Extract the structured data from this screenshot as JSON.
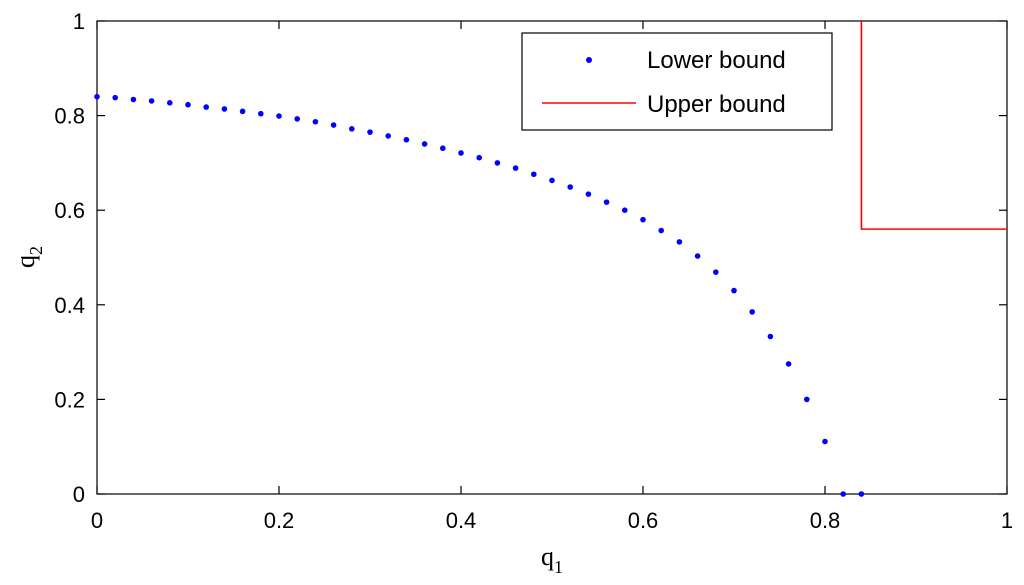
{
  "chart_data": {
    "type": "scatter",
    "title": "",
    "xlabel": "q",
    "xlabel_sub": "1",
    "ylabel": "q",
    "ylabel_sub": "2",
    "xlim": [
      0,
      1
    ],
    "ylim": [
      0,
      1
    ],
    "xticks": [
      "0",
      "0.2",
      "0.4",
      "0.6",
      "0.8",
      "1"
    ],
    "yticks": [
      "0",
      "0.2",
      "0.4",
      "0.6",
      "0.8",
      "1"
    ],
    "grid": false,
    "legend_position": "top-right",
    "colors": {
      "lower": "#0000ff",
      "upper": "#ff0000"
    },
    "series": [
      {
        "name": "Lower bound",
        "style": "dots",
        "x": [
          0,
          0.02,
          0.04,
          0.06,
          0.08,
          0.1,
          0.12,
          0.14,
          0.16,
          0.18,
          0.2,
          0.22,
          0.24,
          0.26,
          0.28,
          0.3,
          0.32,
          0.34,
          0.36,
          0.38,
          0.4,
          0.42,
          0.44,
          0.46,
          0.48,
          0.5,
          0.52,
          0.54,
          0.56,
          0.58,
          0.6,
          0.62,
          0.64,
          0.66,
          0.68,
          0.7,
          0.72,
          0.74,
          0.76,
          0.78,
          0.8,
          0.82,
          0.84
        ],
        "y": [
          0.84,
          0.838,
          0.834,
          0.831,
          0.827,
          0.823,
          0.818,
          0.814,
          0.809,
          0.804,
          0.799,
          0.793,
          0.787,
          0.78,
          0.772,
          0.765,
          0.757,
          0.749,
          0.74,
          0.731,
          0.721,
          0.711,
          0.7,
          0.689,
          0.676,
          0.663,
          0.649,
          0.634,
          0.617,
          0.6,
          0.58,
          0.557,
          0.533,
          0.503,
          0.469,
          0.43,
          0.385,
          0.333,
          0.275,
          0.2,
          0.111,
          0.0,
          0.0
        ]
      },
      {
        "name": "Upper bound",
        "style": "line",
        "x": [
          0.84,
          0.84,
          1.0
        ],
        "y": [
          1.0,
          0.56,
          0.56
        ]
      }
    ]
  }
}
